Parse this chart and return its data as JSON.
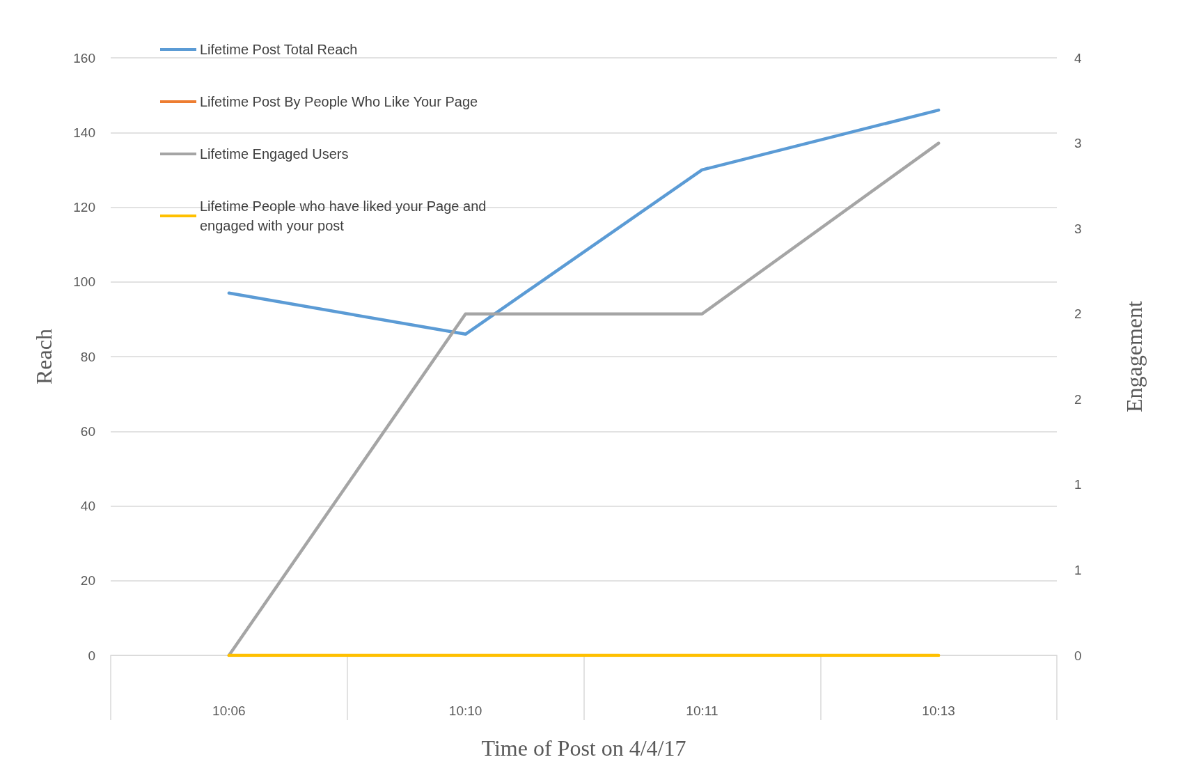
{
  "chart_data": {
    "type": "line",
    "xlabel": "Time of Post on 4/4/17",
    "ylabel": "Reach",
    "y2label": "Engagement",
    "categories": [
      "10:06",
      "10:10",
      "10:11",
      "10:13"
    ],
    "series": [
      {
        "name": "Lifetime Post Total Reach",
        "color": "#5b9bd5",
        "values": [
          97,
          86,
          130,
          146
        ]
      },
      {
        "name": "Lifetime Post By People Who Like Your Page",
        "color": "#ed7d31",
        "values": [
          null,
          null,
          null,
          null
        ]
      },
      {
        "name": "Lifetime Engaged Users",
        "color": "#a5a5a5",
        "axis": "y2",
        "values": [
          0,
          2,
          2,
          3
        ]
      },
      {
        "name": "Lifetime People who have liked your Page and engaged with your post",
        "color": "#ffc000",
        "axis": "y2",
        "values": [
          0,
          0,
          0,
          0
        ]
      }
    ],
    "ylim": [
      0,
      160
    ],
    "yticks": [
      0,
      20,
      40,
      60,
      80,
      100,
      120,
      140,
      160
    ],
    "y2lim": [
      0,
      3.5
    ],
    "y2ticks": [
      0,
      {
        "value": 0.5,
        "label": "1"
      },
      1,
      {
        "value": 1.5,
        "label": "2"
      },
      2,
      {
        "value": 2.5,
        "label": "3"
      },
      3,
      {
        "value": 3.5,
        "label": "4"
      }
    ],
    "grid": "y",
    "legend": "top left",
    "marker": "none",
    "line_style": "solid"
  }
}
